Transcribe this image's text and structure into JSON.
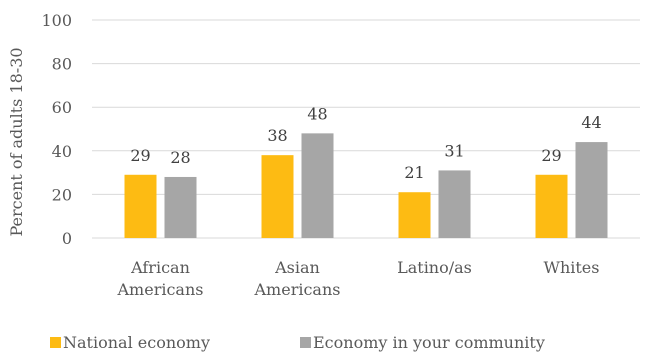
{
  "chart_data": {
    "type": "bar",
    "categories": [
      [
        "African",
        "Americans"
      ],
      [
        "Asian",
        "Americans"
      ],
      [
        "Latino/as"
      ],
      [
        "Whites"
      ]
    ],
    "series": [
      {
        "name": "National economy",
        "values": [
          29,
          38,
          21,
          29
        ],
        "color": "#fdbb13"
      },
      {
        "name": "Economy in your community",
        "values": [
          28,
          48,
          31,
          44
        ],
        "color": "#a6a6a6"
      }
    ],
    "ylabel": "Percent of adults 18-30",
    "ylim": [
      0,
      100
    ],
    "yticks": [
      0,
      20,
      40,
      60,
      80,
      100
    ],
    "grid": true,
    "legend": "bottom"
  }
}
